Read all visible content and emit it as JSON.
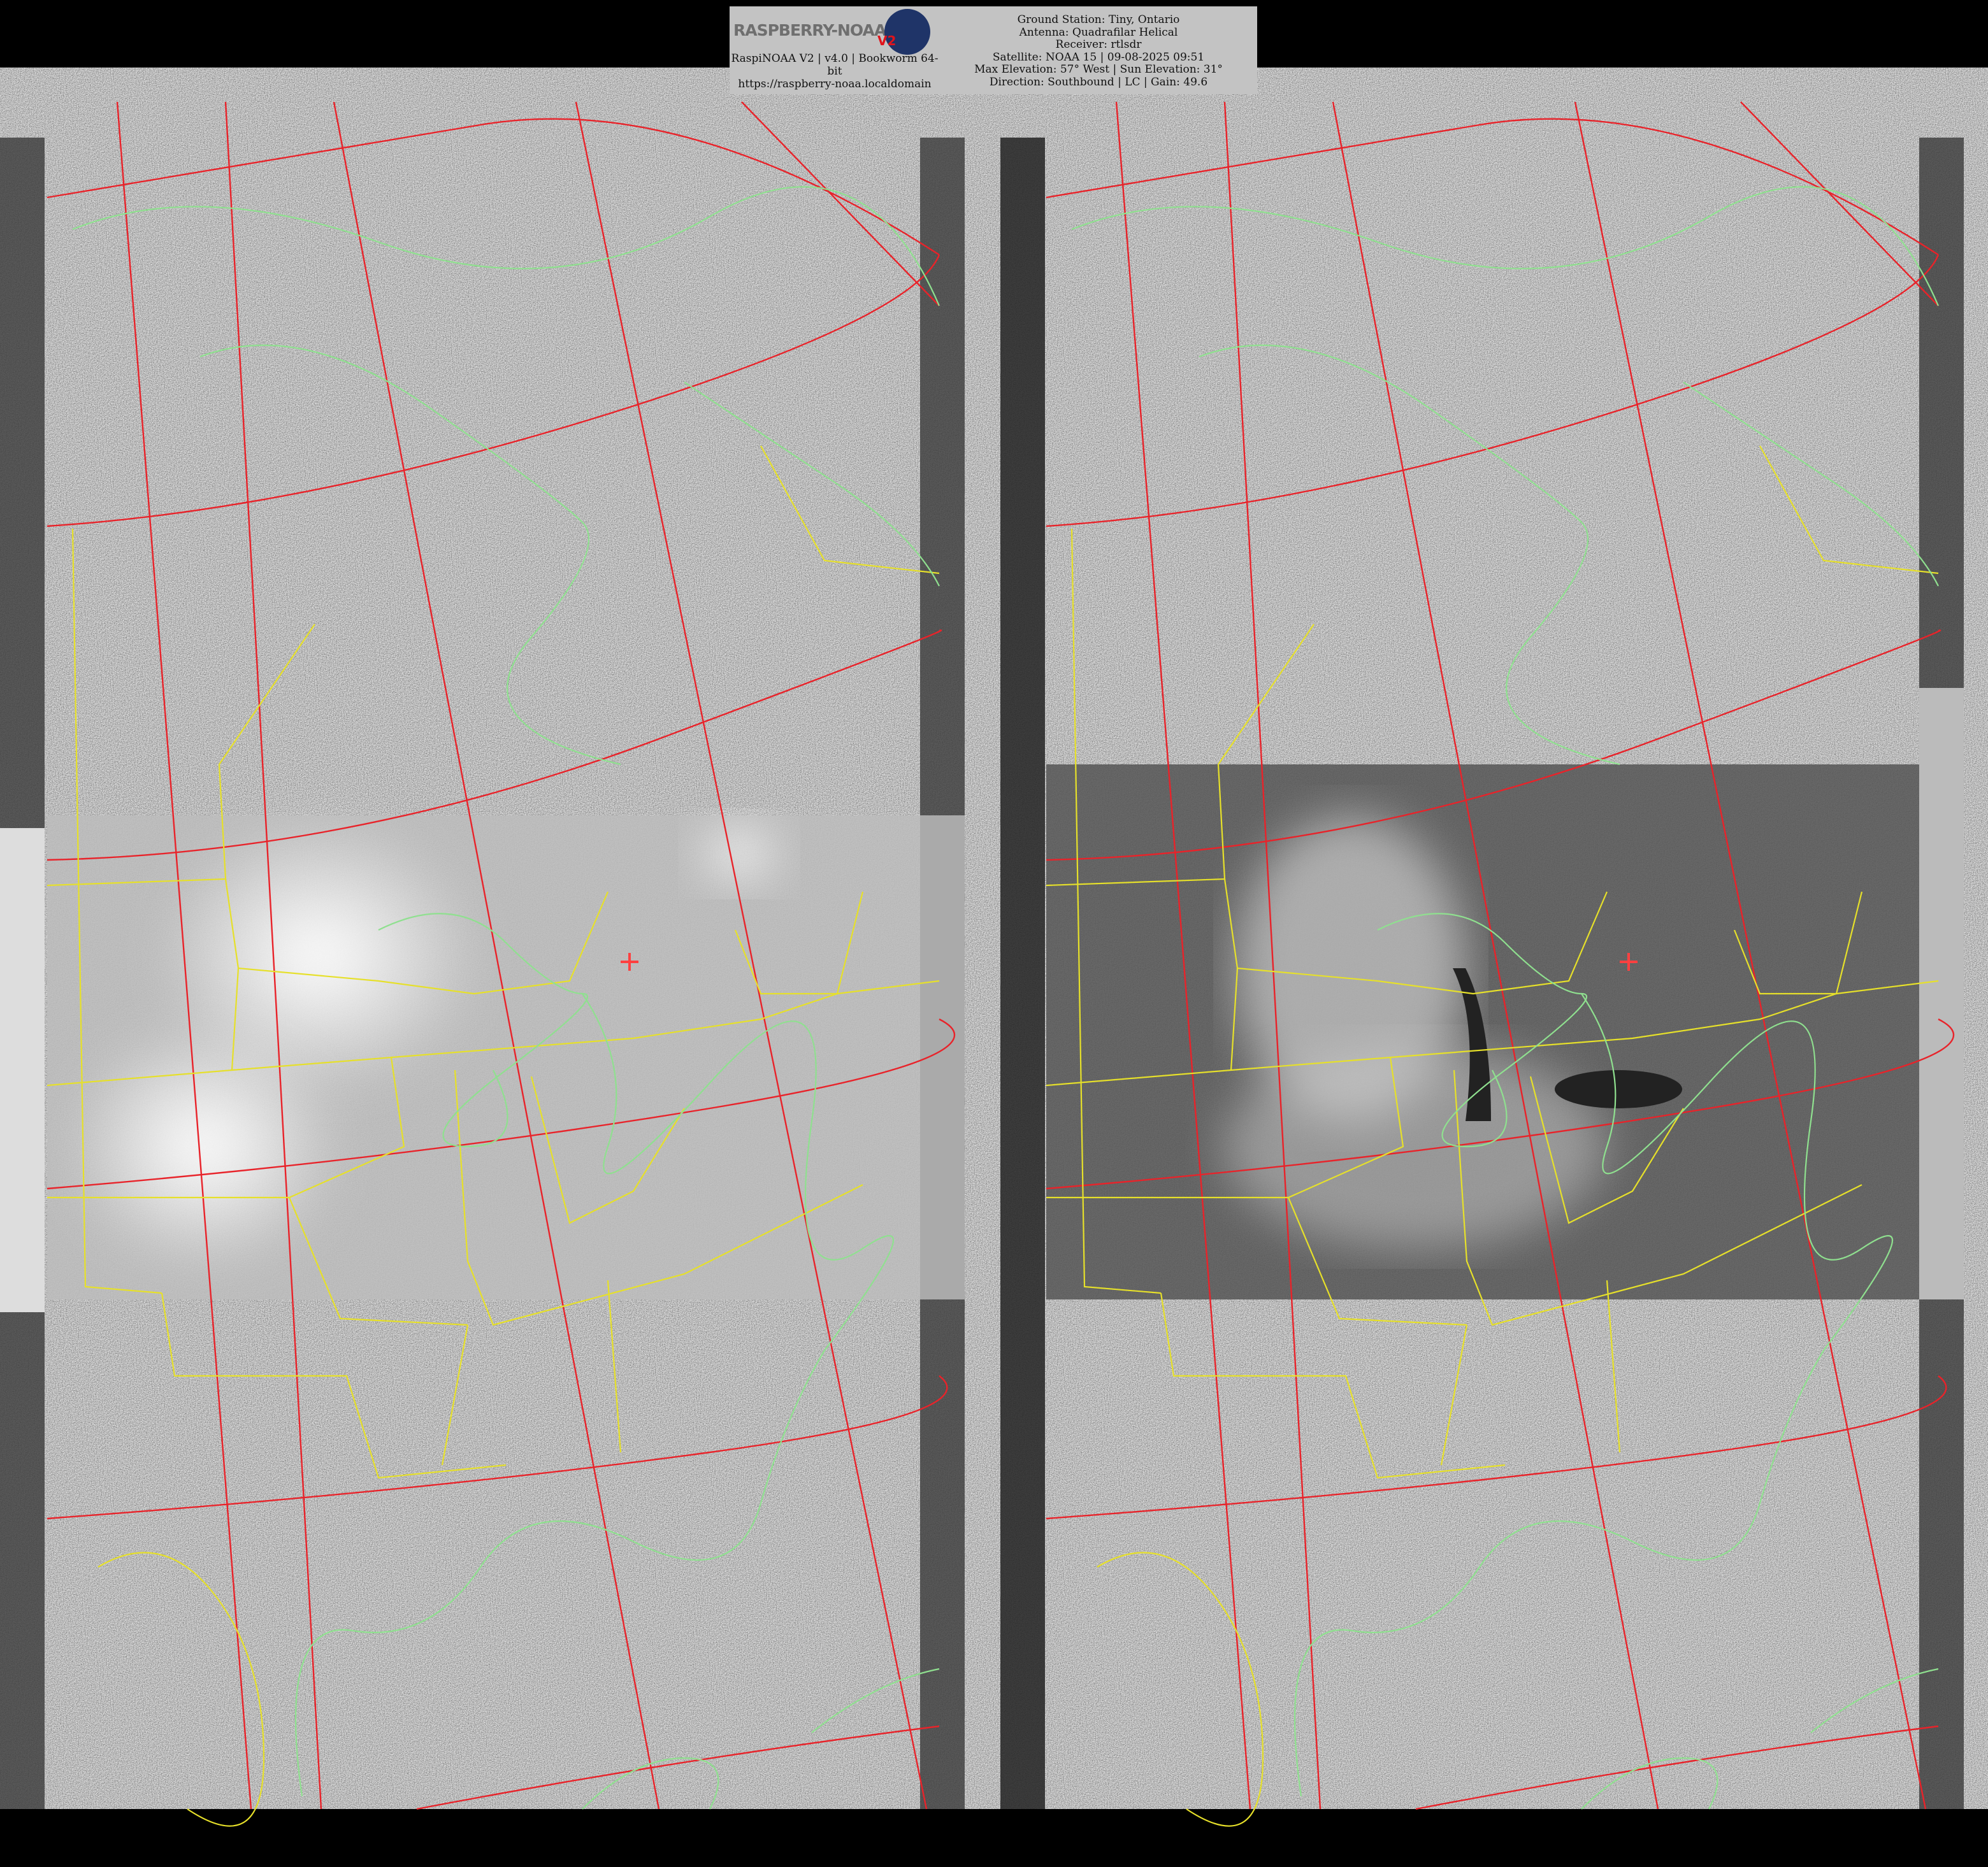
{
  "header": {
    "logo_text": "RASPBERRY-NOAA",
    "logo_badge": "V2",
    "software_line": "RaspiNOAA V2 | v4.0 | Bookworm 64-bit",
    "url": "https://raspberry-noaa.localdomain",
    "ground_station": "Ground Station: Tiny, Ontario",
    "antenna": "Antenna: Quadrafilar Helical",
    "receiver": "Receiver: rtlsdr",
    "satellite": "Satellite: NOAA 15 | 09-08-2025 09:51",
    "elevation": "Max Elevation: 57° West | Sun Elevation: 31°",
    "direction": "Direction: Southbound | LC | Gain: 49.6"
  },
  "image": {
    "panels": [
      "channel-a-visible",
      "channel-b-infrared"
    ],
    "overlay_colors": {
      "grid": "#e8232a",
      "state_borders": "#e6e02a",
      "coastlines": "#8fe08f"
    },
    "station_marker_color": "#ff4040"
  }
}
